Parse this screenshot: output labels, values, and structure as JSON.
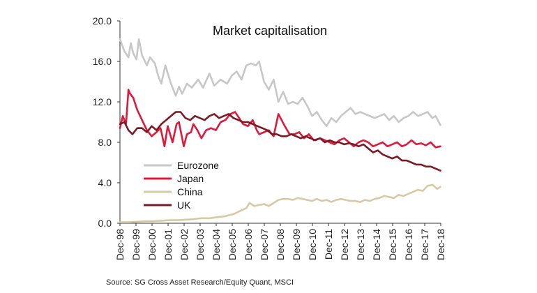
{
  "chart_data": {
    "type": "line",
    "title": "Market capitalisation",
    "xlabel": "",
    "ylabel": "",
    "ylim": [
      0,
      20
    ],
    "yticks": [
      "0.0",
      "4.0",
      "8.0",
      "12.0",
      "16.0",
      "20.0"
    ],
    "categories": [
      "Dec-98",
      "Dec-99",
      "Dec-00",
      "Dec-01",
      "Dec-02",
      "Dec-03",
      "Dec-04",
      "Dec-05",
      "Dec-06",
      "Dec-07",
      "Dec-08",
      "Dec-09",
      "Dec-10",
      "Dec-11",
      "Dec-12",
      "Dec-13",
      "Dec-14",
      "Dec-15",
      "Dec-16",
      "Dec-17",
      "Dec-18"
    ],
    "grid": false,
    "legend_position": "center-left",
    "series": [
      {
        "name": "Eurozone",
        "color": "#c7c7c7",
        "x": [
          1998.92,
          1999.2,
          1999.45,
          1999.6,
          1999.75,
          1999.95,
          2000.1,
          2000.3,
          2000.6,
          2000.8,
          2001.1,
          2001.3,
          2001.5,
          2001.75,
          2002.1,
          2002.4,
          2002.6,
          2002.8,
          2003.1,
          2003.4,
          2003.8,
          2004.1,
          2004.5,
          2004.8,
          2005.2,
          2005.6,
          2005.9,
          2006.2,
          2006.5,
          2006.8,
          2007.1,
          2007.4,
          2007.6,
          2007.9,
          2008.2,
          2008.5,
          2008.8,
          2009.1,
          2009.4,
          2009.7,
          2010.0,
          2010.3,
          2010.6,
          2010.9,
          2011.2,
          2011.5,
          2011.8,
          2012.1,
          2012.4,
          2012.7,
          2013.0,
          2013.3,
          2013.6,
          2013.9,
          2014.2,
          2014.5,
          2014.8,
          2015.1,
          2015.4,
          2015.7,
          2016.0,
          2016.3,
          2016.6,
          2016.9,
          2017.2,
          2017.5,
          2017.8,
          2018.1,
          2018.4,
          2018.6,
          2018.9
        ],
        "values": [
          18.2,
          17.0,
          16.4,
          17.8,
          16.8,
          16.2,
          18.2,
          16.6,
          15.6,
          16.4,
          15.8,
          14.6,
          13.8,
          15.6,
          13.8,
          12.6,
          13.5,
          12.8,
          13.8,
          13.4,
          14.2,
          13.4,
          14.8,
          13.6,
          14.2,
          13.8,
          14.6,
          15.0,
          14.2,
          15.6,
          15.8,
          15.6,
          16.0,
          14.0,
          13.2,
          14.2,
          12.0,
          13.0,
          11.8,
          12.0,
          11.8,
          12.4,
          11.6,
          10.6,
          11.0,
          10.2,
          9.6,
          10.4,
          10.0,
          10.6,
          11.0,
          11.4,
          10.8,
          11.0,
          10.8,
          10.6,
          10.4,
          10.6,
          10.8,
          10.2,
          10.6,
          10.0,
          10.4,
          10.6,
          11.0,
          10.6,
          10.8,
          11.0,
          10.4,
          10.6,
          9.7
        ]
      },
      {
        "name": "Japan",
        "color": "#e0193b",
        "x": [
          1998.92,
          1999.1,
          1999.3,
          1999.45,
          1999.55,
          1999.75,
          2000.0,
          2000.3,
          2000.6,
          2000.9,
          2001.2,
          2001.45,
          2001.7,
          2001.9,
          2002.2,
          2002.45,
          2002.6,
          2002.9,
          2003.1,
          2003.35,
          2003.5,
          2003.75,
          2004.0,
          2004.3,
          2004.6,
          2004.9,
          2005.2,
          2005.5,
          2005.8,
          2006.1,
          2006.35,
          2006.6,
          2006.9,
          2007.2,
          2007.45,
          2007.6,
          2007.9,
          2008.2,
          2008.5,
          2008.8,
          2009.2,
          2009.5,
          2009.8,
          2010.1,
          2010.4,
          2010.7,
          2011.0,
          2011.4,
          2011.7,
          2012.0,
          2012.3,
          2012.6,
          2012.9,
          2013.2,
          2013.5,
          2013.8,
          2014.1,
          2014.4,
          2014.7,
          2015.0,
          2015.3,
          2015.6,
          2015.9,
          2016.2,
          2016.5,
          2016.8,
          2017.1,
          2017.4,
          2017.7,
          2018.0,
          2018.3,
          2018.6,
          2018.9
        ],
        "values": [
          9.4,
          10.6,
          9.8,
          13.2,
          12.8,
          12.4,
          11.2,
          10.2,
          9.2,
          8.6,
          9.0,
          9.4,
          7.6,
          9.6,
          8.0,
          9.8,
          10.0,
          7.6,
          8.8,
          9.0,
          9.8,
          9.2,
          8.4,
          9.2,
          9.4,
          9.2,
          10.0,
          10.2,
          10.8,
          11.0,
          10.4,
          9.8,
          9.6,
          10.2,
          9.2,
          8.8,
          9.0,
          9.2,
          8.6,
          10.8,
          9.6,
          8.8,
          8.8,
          9.0,
          8.4,
          8.8,
          8.2,
          8.4,
          8.2,
          8.0,
          7.8,
          8.2,
          8.4,
          8.0,
          7.6,
          8.0,
          8.2,
          8.0,
          7.6,
          7.8,
          8.0,
          7.6,
          7.8,
          8.0,
          7.6,
          7.8,
          8.2,
          7.8,
          7.9,
          7.7,
          8.0,
          7.5,
          7.6
        ]
      },
      {
        "name": "China",
        "color": "#d9c8a4",
        "x": [
          1998.92,
          1999.5,
          2000.0,
          2000.5,
          2001.0,
          2001.5,
          2002.0,
          2002.5,
          2003.0,
          2003.5,
          2004.0,
          2004.5,
          2005.0,
          2005.5,
          2006.0,
          2006.4,
          2006.8,
          2007.0,
          2007.3,
          2007.6,
          2007.9,
          2008.2,
          2008.5,
          2008.8,
          2009.1,
          2009.4,
          2009.7,
          2010.0,
          2010.3,
          2010.6,
          2010.9,
          2011.2,
          2011.5,
          2011.8,
          2012.1,
          2012.4,
          2012.7,
          2013.0,
          2013.3,
          2013.6,
          2013.9,
          2014.2,
          2014.5,
          2014.8,
          2015.1,
          2015.4,
          2015.7,
          2016.0,
          2016.3,
          2016.6,
          2016.9,
          2017.2,
          2017.5,
          2017.8,
          2018.1,
          2018.4,
          2018.7,
          2018.9
        ],
        "values": [
          0.1,
          0.1,
          0.15,
          0.2,
          0.2,
          0.25,
          0.3,
          0.3,
          0.35,
          0.4,
          0.5,
          0.5,
          0.6,
          0.7,
          0.9,
          1.2,
          1.5,
          2.0,
          1.7,
          1.8,
          1.9,
          1.7,
          2.0,
          2.3,
          2.4,
          2.4,
          2.3,
          2.5,
          2.4,
          2.3,
          2.2,
          2.4,
          2.2,
          2.3,
          2.1,
          2.3,
          2.4,
          2.3,
          2.2,
          2.2,
          2.1,
          2.3,
          2.2,
          2.4,
          2.5,
          2.7,
          2.6,
          2.5,
          2.8,
          2.7,
          2.9,
          3.1,
          3.3,
          3.2,
          3.7,
          3.8,
          3.4,
          3.6
        ]
      },
      {
        "name": "UK",
        "color": "#7a1a24",
        "x": [
          1998.92,
          1999.2,
          1999.45,
          1999.7,
          2000.0,
          2000.3,
          2000.6,
          2000.9,
          2001.2,
          2001.5,
          2001.8,
          2002.1,
          2002.4,
          2002.7,
          2003.0,
          2003.3,
          2003.6,
          2003.9,
          2004.2,
          2004.5,
          2004.8,
          2005.1,
          2005.4,
          2005.7,
          2006.0,
          2006.3,
          2006.6,
          2006.9,
          2007.2,
          2007.5,
          2007.8,
          2008.1,
          2008.4,
          2008.7,
          2009.0,
          2009.3,
          2009.6,
          2009.9,
          2010.2,
          2010.5,
          2010.8,
          2011.1,
          2011.4,
          2011.7,
          2012.0,
          2012.3,
          2012.6,
          2012.9,
          2013.2,
          2013.5,
          2013.8,
          2014.1,
          2014.4,
          2014.7,
          2015.0,
          2015.3,
          2015.6,
          2015.9,
          2016.2,
          2016.5,
          2016.8,
          2017.1,
          2017.4,
          2017.7,
          2018.0,
          2018.3,
          2018.6,
          2018.9
        ],
        "values": [
          9.8,
          10.0,
          9.2,
          8.8,
          9.4,
          9.4,
          9.0,
          9.6,
          9.2,
          9.8,
          10.2,
          10.6,
          11.0,
          11.0,
          10.4,
          10.2,
          10.6,
          10.4,
          10.2,
          10.6,
          10.8,
          10.4,
          10.6,
          10.8,
          10.4,
          10.2,
          10.0,
          10.0,
          9.8,
          9.6,
          9.4,
          9.2,
          8.8,
          8.8,
          8.6,
          8.6,
          8.8,
          8.6,
          8.4,
          8.6,
          8.4,
          8.2,
          8.4,
          8.0,
          8.2,
          8.0,
          8.0,
          7.8,
          7.9,
          7.8,
          7.6,
          7.8,
          7.4,
          7.0,
          7.2,
          6.8,
          6.6,
          6.4,
          6.6,
          6.2,
          6.2,
          6.0,
          5.8,
          5.8,
          5.6,
          5.6,
          5.4,
          5.2
        ]
      }
    ]
  },
  "source": "Source: SG Cross Asset Research/Equity Quant, MSCI"
}
